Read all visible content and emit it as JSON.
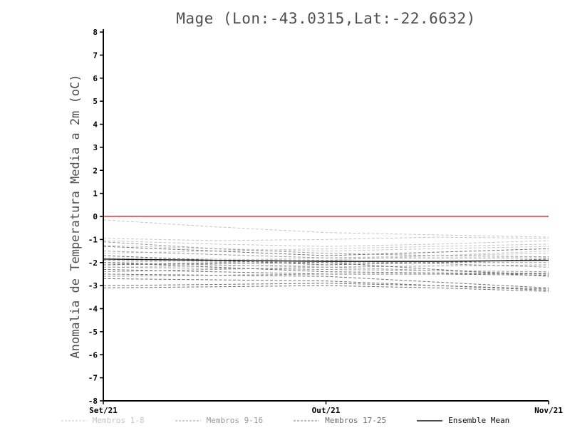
{
  "title": "Mage (Lon:-43.0315,Lat:-22.6632)",
  "ylabel": "Anomalia de Temperatura Media a 2m (oC)",
  "chart_data": {
    "type": "line",
    "x_tick_labels": [
      "Set/21",
      "Out/21",
      "Nov/21"
    ],
    "yticks": [
      8,
      7,
      6,
      5,
      4,
      3,
      2,
      1,
      0,
      -1,
      -2,
      -3,
      -4,
      -5,
      -6,
      -7,
      -8
    ],
    "ylim": [
      -8,
      8
    ],
    "grid": false,
    "zero_line": {
      "y": 0,
      "color": "#f04b4b"
    },
    "axis_color": "#000000",
    "groups": [
      {
        "name": "Membros 1-8",
        "color": "#c6c6c6",
        "dashed": true,
        "series": [
          [
            -0.15,
            -0.45,
            -0.7,
            -0.8,
            -0.9
          ],
          [
            -0.95,
            -1.05,
            -1.0,
            -0.9,
            -0.95
          ],
          [
            -1.05,
            -1.2,
            -1.3,
            -1.2,
            -1.05
          ],
          [
            -1.25,
            -1.4,
            -1.5,
            -1.4,
            -1.3
          ],
          [
            -1.6,
            -1.5,
            -1.4,
            -1.3,
            -1.2
          ],
          [
            -1.8,
            -1.85,
            -1.9,
            -1.7,
            -1.5
          ],
          [
            -2.0,
            -1.9,
            -1.8,
            -1.7,
            -1.6
          ],
          [
            -2.2,
            -2.15,
            -2.1,
            -2.0,
            -1.9
          ]
        ]
      },
      {
        "name": "Membros 9-16",
        "color": "#989898",
        "dashed": true,
        "series": [
          [
            -1.1,
            -1.4,
            -1.6,
            -1.7,
            -1.75
          ],
          [
            -1.5,
            -1.65,
            -1.8,
            -1.8,
            -1.8
          ],
          [
            -1.9,
            -1.95,
            -2.0,
            -2.0,
            -2.0
          ],
          [
            -2.0,
            -2.1,
            -2.2,
            -2.15,
            -2.1
          ],
          [
            -2.1,
            -2.0,
            -1.9,
            -2.05,
            -2.2
          ],
          [
            -2.2,
            -2.25,
            -2.3,
            -2.35,
            -2.4
          ],
          [
            -2.4,
            -2.3,
            -2.2,
            -2.35,
            -2.5
          ],
          [
            -2.6,
            -2.55,
            -2.5,
            -2.5,
            -2.45
          ]
        ]
      },
      {
        "name": "Membros 17-25",
        "color": "#6f6f6f",
        "dashed": true,
        "series": [
          [
            -1.3,
            -1.5,
            -1.7,
            -1.55,
            -1.4
          ],
          [
            -1.7,
            -1.9,
            -2.1,
            -2.0,
            -1.85
          ],
          [
            -2.0,
            -2.2,
            -2.4,
            -2.45,
            -2.5
          ],
          [
            -2.1,
            -2.05,
            -2.0,
            -2.3,
            -2.6
          ],
          [
            -2.3,
            -2.4,
            -2.5,
            -2.5,
            -2.55
          ],
          [
            -2.5,
            -2.55,
            -2.6,
            -2.85,
            -3.1
          ],
          [
            -2.7,
            -2.75,
            -2.8,
            -3.0,
            -3.2
          ],
          [
            -3.0,
            -2.95,
            -2.9,
            -3.0,
            -3.15
          ],
          [
            -3.1,
            -3.05,
            -3.0,
            -3.1,
            -3.25
          ]
        ]
      }
    ],
    "mean": {
      "name": "Ensemble Mean",
      "color": "#111111",
      "values": [
        -1.85,
        -1.9,
        -1.95,
        -1.95,
        -1.9
      ]
    }
  },
  "legend": {
    "items": [
      {
        "label": "Membros 1-8",
        "color": "#c6c6c6",
        "dashed": true
      },
      {
        "label": "Membros 9-16",
        "color": "#989898",
        "dashed": true
      },
      {
        "label": "Membros 17-25",
        "color": "#6f6f6f",
        "dashed": true
      },
      {
        "label": "Ensemble Mean",
        "color": "#111111",
        "dashed": false
      }
    ]
  }
}
